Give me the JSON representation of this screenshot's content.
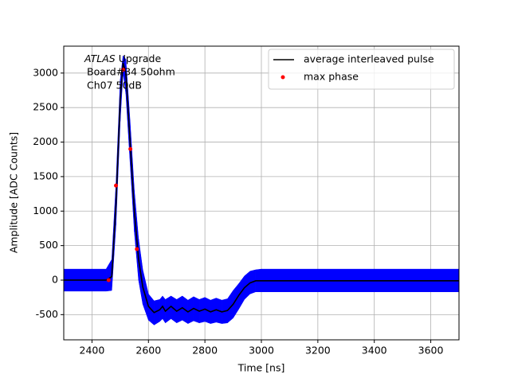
{
  "chart_data": {
    "type": "line",
    "xlabel": "Time [ns]",
    "ylabel": "Amplitude [ADC Counts]",
    "annotation": {
      "italic": "ATLAS",
      "text": "Upgrade",
      "lines": [
        "Board#34 50ohm",
        "Ch07 50dB"
      ]
    },
    "x": [
      2300,
      2450,
      2470,
      2485,
      2500,
      2510,
      2520,
      2535,
      2550,
      2565,
      2580,
      2600,
      2620,
      2640,
      2650,
      2660,
      2680,
      2700,
      2720,
      2740,
      2760,
      2780,
      2800,
      2820,
      2840,
      2860,
      2880,
      2900,
      2920,
      2940,
      2960,
      2980,
      3000,
      3700
    ],
    "band": {
      "color": "#0000ff",
      "upper": [
        160,
        160,
        300,
        1400,
        2900,
        3250,
        3200,
        2300,
        1300,
        600,
        150,
        -200,
        -300,
        -280,
        -230,
        -280,
        -230,
        -280,
        -230,
        -290,
        -240,
        -280,
        -250,
        -290,
        -260,
        -290,
        -270,
        -150,
        -50,
        60,
        130,
        150,
        160,
        160
      ],
      "lower": [
        -160,
        -160,
        -150,
        800,
        2300,
        3000,
        2700,
        1700,
        700,
        0,
        -350,
        -580,
        -650,
        -600,
        -560,
        -620,
        -560,
        -620,
        -580,
        -630,
        -590,
        -620,
        -600,
        -630,
        -610,
        -630,
        -620,
        -550,
        -420,
        -280,
        -200,
        -170,
        -170,
        -170
      ]
    },
    "series": [
      {
        "name": "average interleaved pulse",
        "color": "#000000",
        "values": [
          0,
          0,
          50,
          1100,
          2600,
          3150,
          3000,
          2000,
          1000,
          300,
          -100,
          -380,
          -470,
          -430,
          -380,
          -450,
          -380,
          -450,
          -400,
          -460,
          -410,
          -450,
          -420,
          -460,
          -430,
          -460,
          -440,
          -350,
          -220,
          -110,
          -40,
          -10,
          -10,
          -10
        ]
      },
      {
        "name": "max phase",
        "color": "#ff0000",
        "type": "scatter",
        "x": [
          2459,
          2485,
          2510,
          2536,
          2559
        ],
        "values": [
          0,
          1370,
          3050,
          1900,
          450
        ]
      }
    ],
    "xlim": [
      2300,
      3700
    ],
    "ylim": [
      -865,
      3390
    ],
    "xticks": [
      2400,
      2600,
      2800,
      3000,
      3200,
      3400,
      3600
    ],
    "yticks": [
      -500,
      0,
      500,
      1000,
      1500,
      2000,
      2500,
      3000
    ],
    "grid": true,
    "legend": "upper right"
  }
}
